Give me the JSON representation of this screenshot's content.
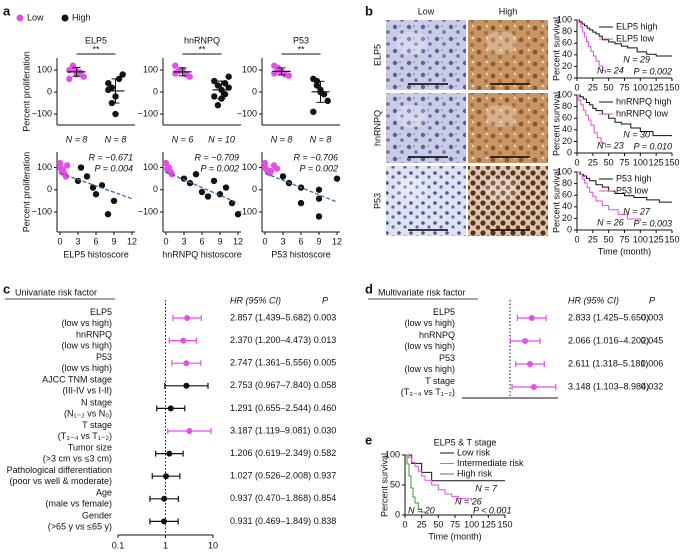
{
  "panel_labels": [
    "a",
    "b",
    "c",
    "d",
    "e"
  ],
  "ihc": {
    "columns": [
      "Low",
      "High"
    ],
    "rows": [
      "ELP5",
      "hnRNPQ",
      "P53"
    ]
  },
  "chart_data": [
    {
      "type": "strip",
      "title": "ELP5",
      "annotation": "**",
      "legend": "top-left",
      "ylabel": "Percent proliferation",
      "ylim": [
        -150,
        155
      ],
      "yticks": [
        100,
        0,
        {
          "value": -100,
          "label": "−100"
        }
      ],
      "series": [
        {
          "name": "Low",
          "color": "#e64ee6",
          "values": [
            100,
            120,
            80,
            90,
            70,
            60,
            110,
            95
          ],
          "mean": 92,
          "sd": 20,
          "n_label": "N = 8"
        },
        {
          "name": "High",
          "color": "#111111",
          "values": [
            40,
            20,
            -20,
            60,
            80,
            10,
            -50,
            -100
          ],
          "mean": 5,
          "sd": 55,
          "n_label": "N = 8"
        }
      ]
    },
    {
      "type": "strip",
      "title": "hnRNPQ",
      "annotation": "**",
      "ylim": [
        -150,
        155
      ],
      "yticks": [
        100,
        0,
        {
          "value": -100,
          "label": "−100"
        }
      ],
      "series": [
        {
          "color": "#e64ee6",
          "values": [
            120,
            95,
            100,
            80,
            70,
            85
          ],
          "mean": 92,
          "sd": 18,
          "n_label": "N = 6"
        },
        {
          "color": "#111111",
          "values": [
            50,
            30,
            10,
            -10,
            70,
            -20,
            -60,
            -30,
            40,
            20
          ],
          "mean": 10,
          "sd": 40,
          "n_label": "N = 10"
        }
      ]
    },
    {
      "type": "strip",
      "title": "P53",
      "annotation": "**",
      "ylim": [
        -150,
        155
      ],
      "yticks": [
        100,
        0,
        {
          "value": -100,
          "label": "−100"
        }
      ],
      "series": [
        {
          "color": "#e64ee6",
          "values": [
            120,
            100,
            90,
            80,
            75,
            85,
            110,
            95
          ],
          "mean": 94,
          "sd": 16,
          "n_label": "N = 8"
        },
        {
          "color": "#111111",
          "values": [
            60,
            30,
            10,
            -10,
            -40,
            -90,
            50,
            0
          ],
          "mean": 1,
          "sd": 48,
          "n_label": "N = 8"
        }
      ]
    },
    {
      "type": "scatter",
      "xlabel": "ELP5 histoscore",
      "ylabel": "Percent proliferation",
      "annotations": [
        "R = −0.671",
        "P = 0.004"
      ],
      "xlim": [
        -0.5,
        12.5
      ],
      "xticks": [
        0,
        3,
        6,
        9,
        12
      ],
      "ylim": [
        -190,
        170
      ],
      "yticks": [
        100,
        0,
        {
          "value": -100,
          "label": "−100"
        }
      ],
      "fit": {
        "x": [
          0,
          12
        ],
        "y": [
          75,
          -40
        ]
      },
      "series": [
        {
          "color": "#e64ee6",
          "x": [
            0,
            0,
            0.3,
            0.5,
            0.8,
            1,
            1.2,
            0.2
          ],
          "values": [
            100,
            120,
            80,
            90,
            70,
            60,
            110,
            95
          ]
        },
        {
          "color": "#111111",
          "x": [
            3,
            3.5,
            4.5,
            5.5,
            6,
            7,
            8,
            9
          ],
          "values": [
            40,
            100,
            60,
            10,
            -20,
            20,
            -110,
            -50
          ]
        }
      ]
    },
    {
      "type": "scatter",
      "xlabel": "hnRNPQ histoscore",
      "annotations": [
        "R = −0.709",
        "P = 0.002"
      ],
      "xlim": [
        -0.5,
        12.5
      ],
      "xticks": [
        0,
        3,
        6,
        9,
        12
      ],
      "ylim": [
        -190,
        170
      ],
      "yticks": [
        100,
        0,
        {
          "value": -100,
          "label": "−100"
        }
      ],
      "fit": {
        "x": [
          0,
          12
        ],
        "y": [
          80,
          -60
        ]
      },
      "series": [
        {
          "color": "#e64ee6",
          "x": [
            0,
            0.2,
            0.5,
            0.8,
            1,
            0.3
          ],
          "values": [
            120,
            95,
            100,
            80,
            70,
            85
          ]
        },
        {
          "color": "#111111",
          "x": [
            3,
            4,
            5,
            6,
            7,
            8,
            9,
            10,
            11,
            12
          ],
          "values": [
            50,
            30,
            70,
            -10,
            -30,
            40,
            -20,
            10,
            -60,
            -110
          ]
        }
      ]
    },
    {
      "type": "scatter",
      "xlabel": "P53 histoscore",
      "annotations": [
        "R = −0.706",
        "P = 0.002"
      ],
      "xlim": [
        -0.5,
        12.5
      ],
      "xticks": [
        0,
        3,
        6,
        9,
        12
      ],
      "ylim": [
        -190,
        170
      ],
      "yticks": [
        100,
        0,
        {
          "value": -100,
          "label": "−100"
        }
      ],
      "fit": {
        "x": [
          0,
          12
        ],
        "y": [
          75,
          -55
        ]
      },
      "series": [
        {
          "color": "#e64ee6",
          "x": [
            0,
            0,
            0.3,
            0.5,
            0.8,
            1,
            1.5,
            2
          ],
          "values": [
            120,
            100,
            90,
            80,
            75,
            85,
            110,
            95
          ]
        },
        {
          "color": "#111111",
          "x": [
            3,
            4,
            6,
            6,
            9,
            9,
            9,
            12
          ],
          "values": [
            60,
            30,
            10,
            -60,
            0,
            -40,
            -120,
            50
          ]
        }
      ]
    },
    {
      "type": "km",
      "ylabel": "Percent survival",
      "xlim": [
        0,
        150
      ],
      "xticks": [
        0,
        25,
        50,
        75,
        100,
        125,
        150
      ],
      "ylim": [
        0,
        100
      ],
      "yticks": [
        0,
        20,
        40,
        60,
        80,
        100
      ],
      "annotations": [
        {
          "text": "N = 29",
          "color": "#111111"
        },
        {
          "text": "N = 24",
          "color": "#e64ee6"
        },
        {
          "text": "P = 0.002",
          "color": "#111111"
        }
      ],
      "series": [
        {
          "name": "ELP5 high",
          "color": "#111111",
          "x": [
            0,
            4,
            8,
            12,
            16,
            20,
            25,
            30,
            35,
            40,
            50,
            60,
            70,
            80,
            95,
            110,
            125,
            150
          ],
          "values": [
            100,
            97,
            93,
            90,
            86,
            83,
            79,
            76,
            72,
            66,
            62,
            59,
            55,
            52,
            45,
            41,
            38,
            38
          ]
        },
        {
          "name": "ELP5 low",
          "color": "#e64ee6",
          "x": [
            0,
            3,
            6,
            9,
            12,
            15,
            18,
            22,
            26,
            30,
            35,
            40,
            45
          ],
          "values": [
            100,
            96,
            88,
            79,
            71,
            63,
            54,
            46,
            38,
            29,
            21,
            13,
            8
          ]
        }
      ]
    },
    {
      "type": "km",
      "ylabel": "Percent survival",
      "xlim": [
        0,
        150
      ],
      "xticks": [
        0,
        25,
        50,
        75,
        100,
        125,
        150
      ],
      "ylim": [
        0,
        100
      ],
      "yticks": [
        0,
        20,
        40,
        60,
        80,
        100
      ],
      "annotations": [
        {
          "text": "N = 30",
          "color": "#111111"
        },
        {
          "text": "N = 23",
          "color": "#e64ee6"
        },
        {
          "text": "P = 0.010",
          "color": "#111111"
        }
      ],
      "series": [
        {
          "name": "hnRNPQ high",
          "color": "#111111",
          "x": [
            0,
            5,
            10,
            15,
            20,
            25,
            30,
            40,
            50,
            60,
            70,
            85,
            100,
            120,
            150
          ],
          "values": [
            100,
            97,
            93,
            87,
            83,
            77,
            73,
            67,
            60,
            53,
            50,
            43,
            37,
            30,
            30
          ]
        },
        {
          "name": "hnRNPQ low",
          "color": "#e64ee6",
          "x": [
            0,
            3,
            6,
            10,
            14,
            18,
            22,
            27,
            32,
            38,
            45
          ],
          "values": [
            100,
            91,
            83,
            74,
            65,
            57,
            48,
            35,
            26,
            17,
            9
          ]
        }
      ]
    },
    {
      "type": "km",
      "ylabel": "Percent survival",
      "xlabel": "Time (month)",
      "xlim": [
        0,
        150
      ],
      "xticks": [
        0,
        25,
        50,
        75,
        100,
        125,
        150
      ],
      "ylim": [
        0,
        100
      ],
      "yticks": [
        0,
        20,
        40,
        60,
        80,
        100
      ],
      "annotations": [
        {
          "text": "N = 27",
          "color": "#111111"
        },
        {
          "text": "N = 26",
          "color": "#e64ee6"
        },
        {
          "text": "P = 0.003",
          "color": "#111111"
        }
      ],
      "series": [
        {
          "name": "P53 high",
          "color": "#111111",
          "x": [
            0,
            5,
            10,
            15,
            20,
            30,
            40,
            50,
            60,
            75,
            90,
            110,
            130,
            150
          ],
          "values": [
            100,
            96,
            93,
            89,
            85,
            78,
            74,
            67,
            63,
            59,
            56,
            52,
            48,
            48
          ]
        },
        {
          "name": "P53 low",
          "color": "#e64ee6",
          "x": [
            0,
            4,
            8,
            12,
            16,
            20,
            25,
            30,
            40,
            50,
            65,
            80,
            100
          ],
          "values": [
            100,
            96,
            88,
            81,
            73,
            65,
            58,
            50,
            42,
            35,
            27,
            19,
            15
          ]
        }
      ]
    },
    {
      "type": "forest",
      "title": "Univariate risk factor",
      "columns": [
        "HR (95% CI)",
        "P"
      ],
      "xscale": "log",
      "xlim": [
        0.1,
        10
      ],
      "xticks": [
        0.1,
        1,
        10
      ],
      "reference": 1,
      "rows": [
        {
          "label": [
            "ELP5",
            "(low vs high)"
          ],
          "hr": 2.857,
          "lo": 1.439,
          "hi": 5.682,
          "hr_label": "2.857 (1.439–5.682)",
          "p": "0.003",
          "color": "#e64ee6"
        },
        {
          "label": [
            "hnRNPQ",
            "(low vs high)"
          ],
          "hr": 2.37,
          "lo": 1.2,
          "hi": 4.473,
          "hr_label": "2.370 (1.200–4.473)",
          "p": "0.013",
          "color": "#e64ee6"
        },
        {
          "label": [
            "P53",
            "(low vs high)"
          ],
          "hr": 2.747,
          "lo": 1.361,
          "hi": 5.556,
          "hr_label": "2.747 (1.361–5.556)",
          "p": "0.005",
          "color": "#e64ee6"
        },
        {
          "label": [
            "AJCC TNM stage",
            "(III-IV vs I-II)"
          ],
          "hr": 2.753,
          "lo": 0.967,
          "hi": 7.84,
          "hr_label": "2.753 (0.967–7.840)",
          "p": "0.058",
          "color": "#111111"
        },
        {
          "label": [
            "N stage",
            "(N₁₋₂ vs N₀)"
          ],
          "hr": 1.291,
          "lo": 0.655,
          "hi": 2.544,
          "hr_label": "1.291 (0.655–2.544)",
          "p": "0.460",
          "color": "#111111"
        },
        {
          "label": [
            "T stage",
            "(T₃₋₄ vs T₁₋₂)"
          ],
          "hr": 3.187,
          "lo": 1.119,
          "hi": 9.081,
          "hr_label": "3.187 (1.119–9.081)",
          "p": "0.030",
          "color": "#e64ee6"
        },
        {
          "label": [
            "Tumor size",
            "(>3 cm vs ≤3 cm)"
          ],
          "hr": 1.206,
          "lo": 0.619,
          "hi": 2.349,
          "hr_label": "1.206 (0.619–2.349)",
          "p": "0.582",
          "color": "#111111"
        },
        {
          "label": [
            "Pathological differentiation",
            "(poor vs well & moderate)"
          ],
          "hr": 1.027,
          "lo": 0.526,
          "hi": 2.008,
          "hr_label": "1.027 (0.526–2.008)",
          "p": "0.937",
          "color": "#111111"
        },
        {
          "label": [
            "Age",
            "(male vs female)"
          ],
          "hr": 0.937,
          "lo": 0.47,
          "hi": 1.868,
          "hr_label": "0.937 (0.470–1.868)",
          "p": "0.854",
          "color": "#111111"
        },
        {
          "label": [
            "Gender",
            "(>65 y vs ≤65 y)"
          ],
          "hr": 0.931,
          "lo": 0.469,
          "hi": 1.849,
          "hr_label": "0.931 (0.469–1.849)",
          "p": "0.838",
          "color": "#111111"
        }
      ]
    },
    {
      "type": "forest",
      "title": "Multivariate risk factor",
      "columns": [
        "HR (95% CI)",
        "P"
      ],
      "xscale": "log",
      "xlim": [
        0.1,
        10
      ],
      "reference": 1,
      "rows": [
        {
          "label": [
            "ELP5",
            "(low vs high)"
          ],
          "hr": 2.833,
          "lo": 1.425,
          "hi": 5.65,
          "hr_label": "2.833 (1.425–5.650)",
          "p": "0.003",
          "color": "#e64ee6"
        },
        {
          "label": [
            "hnRNPQ",
            "(low vs high)"
          ],
          "hr": 2.066,
          "lo": 1.016,
          "hi": 4.202,
          "hr_label": "2.066 (1.016–4.202)",
          "p": "0.045",
          "color": "#e64ee6"
        },
        {
          "label": [
            "P53",
            "(low vs high)"
          ],
          "hr": 2.611,
          "lo": 1.318,
          "hi": 5.181,
          "hr_label": "2.611 (1.318–5.181)",
          "p": "0.006",
          "color": "#e64ee6"
        },
        {
          "label": [
            "T stage",
            "(T₃₋₄ vs T₁₋₂)"
          ],
          "hr": 3.148,
          "lo": 1.103,
          "hi": 8.984,
          "hr_label": "3.148 (1.103–8.984)",
          "p": "0.032",
          "color": "#e64ee6"
        }
      ]
    },
    {
      "type": "km",
      "title": "ELP5 & T stage",
      "ylabel": "Percent survival",
      "xlabel": "Time (month)",
      "xlim": [
        0,
        150
      ],
      "xticks": [
        0,
        25,
        50,
        75,
        100,
        125,
        150
      ],
      "ylim": [
        0,
        100
      ],
      "yticks": [
        0,
        50,
        100
      ],
      "annotations": [
        {
          "text": "N = 7",
          "color": "#111111"
        },
        {
          "text": "N = 26",
          "color": "#e64ee6"
        },
        {
          "text": "N = 20",
          "color": "#3a9a3a"
        },
        {
          "text": "P < 0.001",
          "color": "#111111"
        }
      ],
      "series": [
        {
          "name": "Low risk",
          "color": "#111111",
          "x": [
            0,
            10,
            25,
            40,
            150
          ],
          "values": [
            100,
            86,
            71,
            57,
            57
          ]
        },
        {
          "name": "Intermediate risk",
          "color": "#e64ee6",
          "x": [
            0,
            5,
            10,
            15,
            20,
            25,
            30,
            40,
            50,
            60,
            70,
            80,
            100
          ],
          "values": [
            100,
            96,
            88,
            81,
            73,
            65,
            58,
            50,
            42,
            35,
            31,
            27,
            23
          ]
        },
        {
          "name": "High risk",
          "color": "#3a9a3a",
          "x": [
            0,
            3,
            6,
            9,
            12,
            15,
            20,
            25,
            30
          ],
          "values": [
            100,
            85,
            65,
            45,
            30,
            20,
            10,
            5,
            5
          ]
        }
      ]
    }
  ]
}
